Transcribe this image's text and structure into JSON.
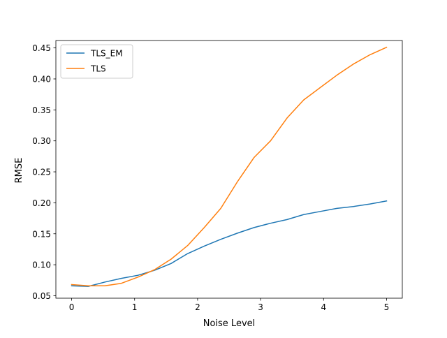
{
  "chart_data": {
    "type": "line",
    "title": "",
    "xlabel": "Noise Level",
    "ylabel": "RMSE",
    "xlim": [
      -0.25,
      5.25
    ],
    "ylim": [
      0.046,
      0.462
    ],
    "xticks": [
      0,
      1,
      2,
      3,
      4,
      5
    ],
    "yticks": [
      0.05,
      0.1,
      0.15,
      0.2,
      0.25,
      0.3,
      0.35,
      0.4,
      0.45
    ],
    "ytick_labels": [
      "0.05",
      "0.10",
      "0.15",
      "0.20",
      "0.25",
      "0.30",
      "0.35",
      "0.40",
      "0.45"
    ],
    "grid": false,
    "legend_position": "top-left",
    "series": [
      {
        "name": "TLS_EM",
        "color": "#1f77b4",
        "x": [
          0,
          0.263,
          0.526,
          0.789,
          1.053,
          1.316,
          1.579,
          1.842,
          2.105,
          2.368,
          2.632,
          2.895,
          3.158,
          3.421,
          3.684,
          3.947,
          4.211,
          4.474,
          4.737,
          5.0
        ],
        "y": [
          0.066,
          0.065,
          0.072,
          0.078,
          0.083,
          0.091,
          0.102,
          0.118,
          0.13,
          0.141,
          0.151,
          0.16,
          0.167,
          0.173,
          0.181,
          0.186,
          0.191,
          0.194,
          0.198,
          0.203
        ]
      },
      {
        "name": "TLS",
        "color": "#ff7f0e",
        "x": [
          0,
          0.263,
          0.526,
          0.789,
          1.053,
          1.316,
          1.579,
          1.842,
          2.105,
          2.368,
          2.632,
          2.895,
          3.158,
          3.421,
          3.684,
          3.947,
          4.211,
          4.474,
          4.737,
          5.0
        ],
        "y": [
          0.068,
          0.066,
          0.066,
          0.07,
          0.08,
          0.092,
          0.109,
          0.131,
          0.16,
          0.191,
          0.234,
          0.273,
          0.3,
          0.337,
          0.366,
          0.386,
          0.406,
          0.424,
          0.439,
          0.451
        ]
      }
    ]
  }
}
